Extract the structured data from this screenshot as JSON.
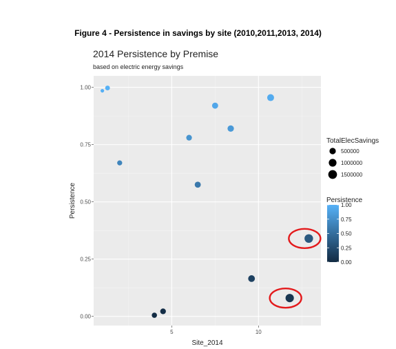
{
  "figure_title": "Figure 4 - Persistence in savings by site (2010,2011,2013, 2014)",
  "chart_data": {
    "type": "scatter",
    "title": "2014 Persistence by Premise",
    "subtitle": "based on electric energy savings",
    "xlabel": "Site_2014",
    "ylabel": "Persistence",
    "xlim": [
      0.5,
      13.6
    ],
    "ylim": [
      -0.04,
      1.05
    ],
    "x_ticks": [
      5,
      10
    ],
    "y_ticks": [
      0.0,
      0.25,
      0.5,
      0.75,
      1.0
    ],
    "x_tick_labels": [
      "5",
      "10"
    ],
    "y_tick_labels": [
      "0.00",
      "0.25",
      "0.50",
      "0.75",
      "1.00"
    ],
    "grid": true,
    "points": [
      {
        "x": 1,
        "y": 0.985,
        "size": 80000
      },
      {
        "x": 1.3,
        "y": 0.997,
        "size": 250000
      },
      {
        "x": 2,
        "y": 0.67,
        "size": 300000
      },
      {
        "x": 4,
        "y": 0.005,
        "size": 350000
      },
      {
        "x": 4.5,
        "y": 0.022,
        "size": 450000
      },
      {
        "x": 6,
        "y": 0.78,
        "size": 450000
      },
      {
        "x": 6.5,
        "y": 0.575,
        "size": 550000
      },
      {
        "x": 7.5,
        "y": 0.92,
        "size": 550000
      },
      {
        "x": 8.4,
        "y": 0.82,
        "size": 650000
      },
      {
        "x": 9.6,
        "y": 0.165,
        "size": 750000
      },
      {
        "x": 10.7,
        "y": 0.955,
        "size": 800000
      },
      {
        "x": 11.8,
        "y": 0.08,
        "size": 1350000
      },
      {
        "x": 12.9,
        "y": 0.34,
        "size": 1450000
      }
    ],
    "size_legend": {
      "title": "TotalElecSavings",
      "entries": [
        {
          "label": "500000",
          "size": 500000
        },
        {
          "label": "1000000",
          "size": 1000000
        },
        {
          "label": "1500000",
          "size": 1500000
        }
      ]
    },
    "color_legend": {
      "title": "Persistence",
      "low_color": "#132B43",
      "high_color": "#56B1F7",
      "ticks": [
        {
          "label": "1.00",
          "value": 1.0
        },
        {
          "label": "0.75",
          "value": 0.75
        },
        {
          "label": "0.50",
          "value": 0.5
        },
        {
          "label": "0.25",
          "value": 0.25
        },
        {
          "label": "0.00",
          "value": 0.0
        }
      ]
    },
    "highlight_circles": [
      {
        "x": 12.9,
        "y": 0.34
      },
      {
        "x": 11.8,
        "y": 0.08
      }
    ],
    "highlight_color": "#e31a1c",
    "panel_color": "#ebebeb"
  }
}
